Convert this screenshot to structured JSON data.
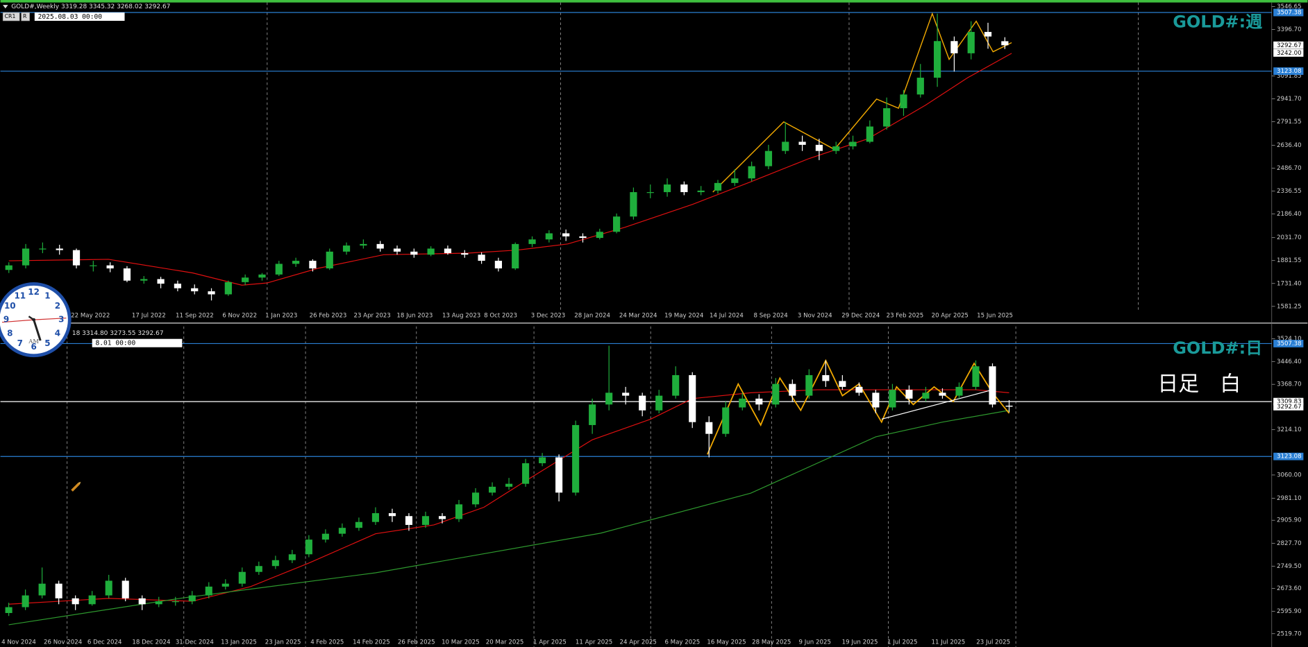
{
  "chart_data": [
    {
      "type": "candlestick",
      "title": "GOLD#:週",
      "header": "GOLD#,Weekly  3319.28 3345.32 3268.02 3292.67",
      "timestamp": "2025.08.03 00:00",
      "toolbar": [
        "CR1",
        "R"
      ],
      "bull_color": "#1fae3c",
      "bear_color": "#ffffff",
      "open": [
        1820,
        1850,
        1960,
        1960,
        1950,
        1850,
        1850,
        1830,
        1750,
        1760,
        1730,
        1700,
        1680,
        1660,
        1740,
        1770,
        1790,
        1860,
        1880,
        1830,
        1940,
        1980,
        1990,
        1960,
        1940,
        1920,
        1960,
        1930,
        1920,
        1880,
        1830,
        1990,
        2020,
        2060,
        2040,
        2030,
        2070,
        2170,
        2330,
        2330,
        2380,
        2330,
        2340,
        2390,
        2420,
        2500,
        2600,
        2660,
        2640,
        2600,
        2630,
        2660,
        2760,
        2880,
        2970,
        3080,
        3320,
        3240,
        3380,
        3319.28
      ],
      "high": [
        1870,
        1990,
        2000,
        1985,
        1960,
        1880,
        1870,
        1845,
        1780,
        1775,
        1750,
        1725,
        1700,
        1750,
        1790,
        1800,
        1880,
        1900,
        1890,
        1960,
        2000,
        2020,
        2010,
        1980,
        1960,
        1975,
        1980,
        1950,
        1935,
        1900,
        2000,
        2040,
        2080,
        2085,
        2060,
        2090,
        2190,
        2360,
        2380,
        2420,
        2400,
        2370,
        2410,
        2480,
        2530,
        2640,
        2790,
        2700,
        2680,
        2660,
        2700,
        2800,
        2950,
        3000,
        3170,
        3500,
        3350,
        3450,
        3440,
        3345.32
      ],
      "low": [
        1800,
        1830,
        1930,
        1920,
        1830,
        1810,
        1805,
        1740,
        1730,
        1700,
        1680,
        1660,
        1620,
        1650,
        1720,
        1750,
        1780,
        1840,
        1810,
        1820,
        1920,
        1960,
        1940,
        1920,
        1900,
        1910,
        1920,
        1900,
        1860,
        1810,
        1820,
        1970,
        2000,
        2010,
        2000,
        2020,
        2060,
        2150,
        2290,
        2300,
        2310,
        2310,
        2320,
        2370,
        2400,
        2480,
        2580,
        2600,
        2540,
        2580,
        2610,
        2650,
        2740,
        2830,
        2950,
        3020,
        3120,
        3200,
        3270,
        3268.02
      ],
      "close": [
        1850,
        1960,
        1960,
        1950,
        1850,
        1850,
        1830,
        1750,
        1760,
        1730,
        1700,
        1680,
        1660,
        1740,
        1770,
        1790,
        1860,
        1880,
        1830,
        1940,
        1980,
        1990,
        1960,
        1940,
        1920,
        1960,
        1930,
        1920,
        1880,
        1830,
        1990,
        2020,
        2060,
        2040,
        2030,
        2070,
        2170,
        2330,
        2330,
        2380,
        2330,
        2340,
        2390,
        2420,
        2500,
        2600,
        2660,
        2640,
        2600,
        2630,
        2660,
        2760,
        2880,
        2970,
        3080,
        3320,
        3240,
        3380,
        3350,
        3292.67
      ],
      "lines": [
        {
          "color": "#e01010",
          "width": 1,
          "x": [
            0,
            5.9,
            10.9,
            13.8,
            15.3,
            18.3,
            22.2,
            27.2,
            30.1,
            33.1,
            36.5,
            40.5,
            44,
            47.4,
            50.9,
            54.3,
            56.8,
            59.4
          ],
          "values": [
            1880,
            1890,
            1800,
            1720,
            1735,
            1830,
            1920,
            1930,
            1950,
            1990,
            2100,
            2250,
            2400,
            2550,
            2680,
            2900,
            3080,
            3240
          ]
        },
        {
          "color": "#f0a800",
          "width": 1.2,
          "x": [
            41.7,
            45.9,
            48.9,
            51.4,
            52.7,
            54.7,
            55.7,
            57.3,
            58.3,
            59.4
          ],
          "values": [
            2330,
            2790,
            2610,
            2940,
            2880,
            3500,
            3200,
            3450,
            3250,
            3310
          ]
        }
      ],
      "hlines": [
        {
          "value": 3507.38,
          "color": "#2a7fd4"
        },
        {
          "value": 3123.08,
          "color": "#2a7fd4"
        }
      ],
      "price_tags": [
        3292.67,
        {
          "value": 3242,
          "label": "3242.00"
        }
      ],
      "price_tag_color": "#ffffff",
      "ylim": [
        1559,
        3562
      ],
      "yticks": [
        {
          "value": 3546.65,
          "label": "3546.65"
        },
        {
          "value": 3396.7,
          "label": "3396.70"
        },
        {
          "value": 3091.85,
          "label": "3091.85"
        },
        {
          "value": 2941.7,
          "label": "2941.70"
        },
        {
          "value": 2791.55,
          "label": "2791.55"
        },
        {
          "value": 2636.4,
          "label": "2636.40"
        },
        {
          "value": 2486.7,
          "label": "2486.70"
        },
        {
          "value": 2336.55,
          "label": "2336.55"
        },
        {
          "value": 2186.4,
          "label": "2186.40"
        },
        {
          "value": 2031.7,
          "label": "2031.70"
        },
        {
          "value": 1881.55,
          "label": "1881.55"
        },
        {
          "value": 1731.4,
          "label": "1731.40"
        },
        {
          "value": 1581.25,
          "label": "1581.25"
        }
      ],
      "x_axis_labels": [
        "22 May 2022",
        "17 Jul 2022",
        "11 Sep 2022",
        "6 Nov 2022",
        "1 Jan 2023",
        "26 Feb 2023",
        "23 Apr 2023",
        "18 Jun 2023",
        "13 Aug 2023",
        "8 Oct 2023",
        "3 Dec 2023",
        "28 Jan 2024",
        "24 Mar 2024",
        "19 May 2024",
        "14 Jul 2024",
        "8 Sep 2024",
        "3 Nov 2024",
        "29 Dec 2024",
        "23 Feb 2025",
        "20 Apr 2025",
        "15 Jun 2025"
      ]
    },
    {
      "type": "candlestick",
      "title": "GOLD#:日",
      "note": "日足　白",
      "header": "18 3314.80 3273.55 3292.67",
      "timestamp": "8.01 00:00",
      "bull_color": "#1fae3c",
      "bear_color": "#ffffff",
      "open": [
        2590,
        2610,
        2650,
        2690,
        2640,
        2620,
        2650,
        2700,
        2640,
        2620,
        2630,
        2630,
        2650,
        2680,
        2690,
        2730,
        2750,
        2770,
        2790,
        2840,
        2860,
        2880,
        2900,
        2930,
        2920,
        2890,
        2920,
        2910,
        2960,
        3000,
        3020,
        3030,
        3100,
        3120,
        3000,
        3230,
        3300,
        3340,
        3330,
        3280,
        3330,
        3400,
        3240,
        3200,
        3290,
        3320,
        3300,
        3370,
        3330,
        3400,
        3380,
        3360,
        3340,
        3290,
        3350,
        3320,
        3340,
        3330,
        3360,
        3430,
        3296
      ],
      "high": [
        2625,
        2670,
        2745,
        2700,
        2650,
        2665,
        2720,
        2710,
        2650,
        2645,
        2645,
        2665,
        2695,
        2705,
        2745,
        2765,
        2785,
        2805,
        2855,
        2875,
        2895,
        2915,
        2950,
        2945,
        2930,
        2935,
        2930,
        2975,
        3015,
        3035,
        3050,
        3115,
        3135,
        3130,
        3245,
        3320,
        3500,
        3360,
        3340,
        3350,
        3430,
        3410,
        3260,
        3310,
        3340,
        3335,
        3390,
        3385,
        3420,
        3450,
        3400,
        3375,
        3350,
        3370,
        3365,
        3360,
        3355,
        3375,
        3450,
        3440,
        3314.8
      ],
      "low": [
        2580,
        2600,
        2640,
        2620,
        2600,
        2615,
        2640,
        2630,
        2600,
        2610,
        2615,
        2620,
        2640,
        2670,
        2680,
        2720,
        2740,
        2760,
        2780,
        2830,
        2850,
        2870,
        2890,
        2900,
        2870,
        2880,
        2895,
        2900,
        2950,
        2990,
        3010,
        3020,
        3090,
        2970,
        2990,
        3200,
        3280,
        3300,
        3260,
        3270,
        3320,
        3220,
        3120,
        3190,
        3280,
        3280,
        3290,
        3310,
        3320,
        3360,
        3350,
        3330,
        3270,
        3280,
        3300,
        3310,
        3320,
        3320,
        3350,
        3290,
        3273.55
      ],
      "close": [
        2610,
        2650,
        2690,
        2640,
        2620,
        2650,
        2700,
        2640,
        2620,
        2630,
        2630,
        2650,
        2680,
        2690,
        2730,
        2750,
        2770,
        2790,
        2840,
        2860,
        2880,
        2900,
        2930,
        2920,
        2890,
        2920,
        2910,
        2960,
        3000,
        3020,
        3030,
        3100,
        3120,
        3000,
        3230,
        3300,
        3340,
        3330,
        3280,
        3330,
        3400,
        3240,
        3200,
        3290,
        3320,
        3300,
        3370,
        3330,
        3400,
        3380,
        3360,
        3340,
        3290,
        3350,
        3320,
        3340,
        3330,
        3360,
        3430,
        3300,
        3292.67
      ],
      "lines": [
        {
          "color": "#e01010",
          "width": 1,
          "x": [
            0,
            6,
            11,
            14.5,
            18,
            22,
            25.5,
            28.5,
            31,
            35,
            38.5,
            41,
            44.5,
            48.5,
            51.5,
            54.5,
            58,
            60
          ],
          "values": [
            2620,
            2640,
            2630,
            2680,
            2760,
            2860,
            2890,
            2950,
            3040,
            3180,
            3250,
            3320,
            3340,
            3350,
            3350,
            3350,
            3350,
            3340
          ]
        },
        {
          "color": "#2e9a2e",
          "width": 1,
          "x": [
            0,
            10.5,
            22,
            35.5,
            44.5,
            52,
            56,
            60
          ],
          "values": [
            2550,
            2642,
            2727,
            2862,
            2998,
            3190,
            3240,
            3280
          ]
        },
        {
          "color": "#f0a800",
          "width": 1.5,
          "x": [
            41.9,
            43.75,
            45.1,
            46.25,
            47.5,
            49,
            50,
            51,
            52.35,
            53.25,
            54.25,
            55.5,
            56.65,
            57.9,
            59,
            60
          ],
          "values": [
            3130,
            3370,
            3230,
            3390,
            3280,
            3450,
            3330,
            3370,
            3240,
            3360,
            3300,
            3360,
            3310,
            3440,
            3340,
            3270
          ]
        },
        {
          "color": "#ffffff",
          "width": 1,
          "x": [
            52.35,
            59
          ],
          "values": [
            3250,
            3350
          ]
        }
      ],
      "hlines": [
        {
          "value": 3507.38,
          "color": "#2a7fd4"
        },
        {
          "value": 3309.83,
          "color": "#ffffff"
        },
        {
          "value": 3123.08,
          "color": "#2a7fd4"
        }
      ],
      "price_tags": [
        3292.67
      ],
      "price_tag_color": "#ffffff",
      "ylim": [
        2480,
        3563
      ],
      "yticks": [
        {
          "value": 3524.1,
          "label": "3524.10"
        },
        {
          "value": 3446.4,
          "label": "3446.40"
        },
        {
          "value": 3368.7,
          "label": "3368.70"
        },
        {
          "value": 3214.1,
          "label": "3214.10"
        },
        {
          "value": 3060,
          "label": "3060.00"
        },
        {
          "value": 2981.1,
          "label": "2981.10"
        },
        {
          "value": 2905.9,
          "label": "2905.90"
        },
        {
          "value": 2827.7,
          "label": "2827.70"
        },
        {
          "value": 2749.5,
          "label": "2749.50"
        },
        {
          "value": 2673.6,
          "label": "2673.60"
        },
        {
          "value": 2595.9,
          "label": "2595.90"
        },
        {
          "value": 2519.7,
          "label": "2519.70"
        }
      ],
      "x_axis_labels": [
        "4 Nov 2024",
        "26 Nov 2024",
        "6 Dec 2024",
        "18 Dec 2024",
        "31 Dec 2024",
        "13 Jan 2025",
        "23 Jan 2025",
        "4 Feb 2025",
        "14 Feb 2025",
        "26 Feb 2025",
        "10 Mar 2025",
        "20 Mar 2025",
        "1 Apr 2025",
        "11 Apr 2025",
        "24 Apr 2025",
        "6 May 2025",
        "16 May 2025",
        "28 May 2025",
        "9 Jun 2025",
        "19 Jun 2025",
        "1 Jul 2025",
        "11 Jul 2025",
        "23 Jul 2025"
      ]
    }
  ],
  "clock": {
    "numerals": [
      "12",
      "1",
      "2",
      "3",
      "4",
      "5",
      "6",
      "7",
      "8",
      "9",
      "10",
      "11"
    ],
    "label": "AM"
  }
}
